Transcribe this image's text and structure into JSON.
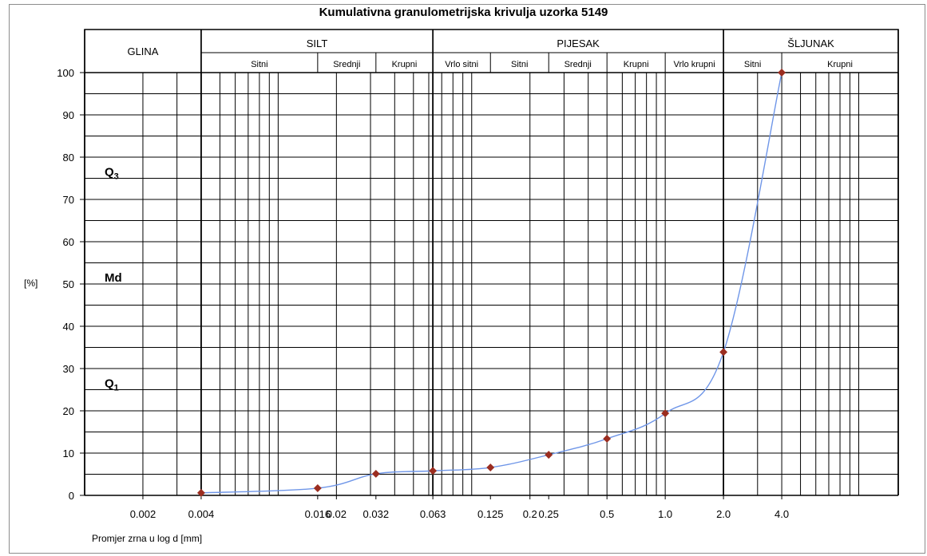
{
  "chart_data": {
    "type": "line",
    "title": "Kumulativna granulometrijska krivulja uzorka 5149",
    "xlabel": "Promjer zrna u log d [mm]",
    "ylabel": "[%]",
    "x_scale": "log",
    "y_range": [
      0,
      100
    ],
    "y_ticks": [
      "0",
      "10",
      "20",
      "30",
      "40",
      "50",
      "60",
      "70",
      "80",
      "90",
      "100"
    ],
    "x_ticks": [
      {
        "value": 0.002,
        "label": "0.002"
      },
      {
        "value": 0.004,
        "label": "0.004"
      },
      {
        "value": 0.016,
        "label": "0.016"
      },
      {
        "value": 0.02,
        "label": "0.02"
      },
      {
        "value": 0.032,
        "label": "0.032"
      },
      {
        "value": 0.063,
        "label": "0.063"
      },
      {
        "value": 0.125,
        "label": "0.125"
      },
      {
        "value": 0.2,
        "label": "0.2"
      },
      {
        "value": 0.25,
        "label": "0.25"
      },
      {
        "value": 0.5,
        "label": "0.5"
      },
      {
        "value": 1.0,
        "label": "1.0"
      },
      {
        "value": 2.0,
        "label": "2.0"
      },
      {
        "value": 4.0,
        "label": "4.0"
      }
    ],
    "grid": true,
    "line_color": "#6f96e8",
    "marker_color": "#9b2d20",
    "series": [
      {
        "x": [
          0.004,
          0.016,
          0.032,
          0.063,
          0.125,
          0.25,
          0.5,
          1.0,
          2.0,
          4.0
        ],
        "y": [
          0.6,
          1.7,
          5.1,
          5.8,
          6.6,
          9.6,
          13.4,
          19.4,
          33.9,
          100
        ]
      }
    ],
    "quantile_labels": [
      {
        "label": "Q",
        "sub": "3",
        "y": 75
      },
      {
        "label": "Md",
        "sub": "",
        "y": 50
      },
      {
        "label": "Q",
        "sub": "1",
        "y": 25
      }
    ],
    "classes": [
      {
        "name": "GLINA",
        "from": 0.001,
        "to": 0.004,
        "subs": []
      },
      {
        "name": "SILT",
        "from": 0.004,
        "to": 0.063,
        "subs": [
          {
            "name": "Sitni",
            "from": 0.004,
            "to": 0.016
          },
          {
            "name": "Srednji",
            "from": 0.016,
            "to": 0.032
          },
          {
            "name": "Krupni",
            "from": 0.032,
            "to": 0.063
          }
        ]
      },
      {
        "name": "PIJESAK",
        "from": 0.063,
        "to": 2.0,
        "subs": [
          {
            "name": "Vrlo sitni",
            "from": 0.063,
            "to": 0.125
          },
          {
            "name": "Sitni",
            "from": 0.125,
            "to": 0.25
          },
          {
            "name": "Srednji",
            "from": 0.25,
            "to": 0.5
          },
          {
            "name": "Krupni",
            "from": 0.5,
            "to": 1.0
          },
          {
            "name": "Vrlo krupni",
            "from": 1.0,
            "to": 2.0
          }
        ]
      },
      {
        "name": "ŠLJUNAK",
        "from": 2.0,
        "to": 16.0,
        "subs": [
          {
            "name": "Sitni",
            "from": 2.0,
            "to": 4.0
          },
          {
            "name": "Krupni",
            "from": 4.0,
            "to": 16.0
          }
        ]
      }
    ]
  }
}
